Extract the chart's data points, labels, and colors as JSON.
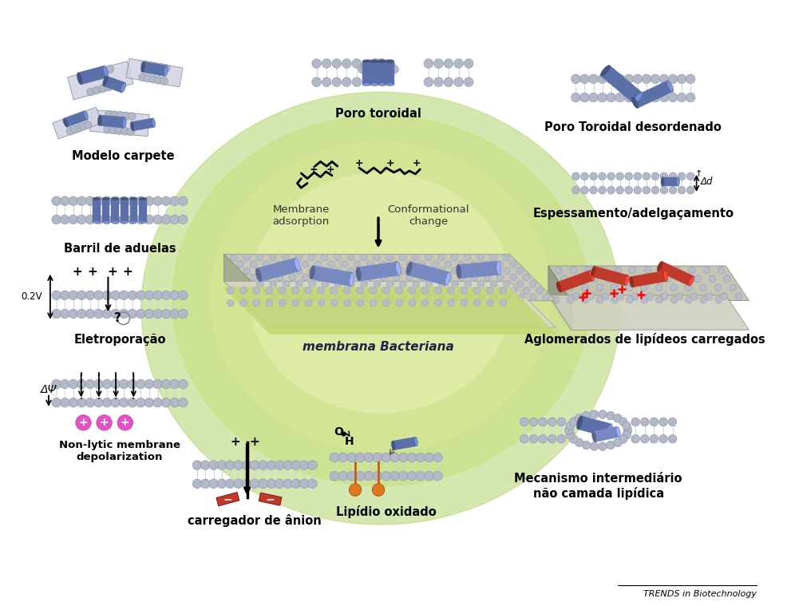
{
  "bg_color": "#ffffff",
  "title_journal": "TRENDS in Biotechnology",
  "labels": {
    "modelo_carpete": "Modelo carpete",
    "poro_toroidal": "Poro toroidal",
    "poro_desordenado": "Poro Toroidal desordenado",
    "barril": "Barril de aduelas",
    "eletroporacao": "Eletroporação",
    "non_lytic": "Non-lytic membrane\ndepolarization",
    "carregador": "carregador de ânion",
    "lipidio": "Lipídio oxidado",
    "mecanismo": "Mecanismo intermediário\nnão camada lipídica",
    "aglomerados": "Aglomerados de lipídeos carregados",
    "espessamento": "Espessamento/adelgaçamento",
    "membrana": "membrana Bacteriana",
    "membrane_adsorption": "Membrane\nadsorption",
    "conformational": "Conformational\nchange"
  },
  "head_color": "#b2b8c8",
  "head_edge": "#8890a8",
  "tail_color": "#d0d4e0",
  "pep_blue": "#5b6fa8",
  "pep_blue2": "#7888c0",
  "pep_red": "#c0392b",
  "ion_pink": "#e040c0",
  "orange": "#e07820"
}
